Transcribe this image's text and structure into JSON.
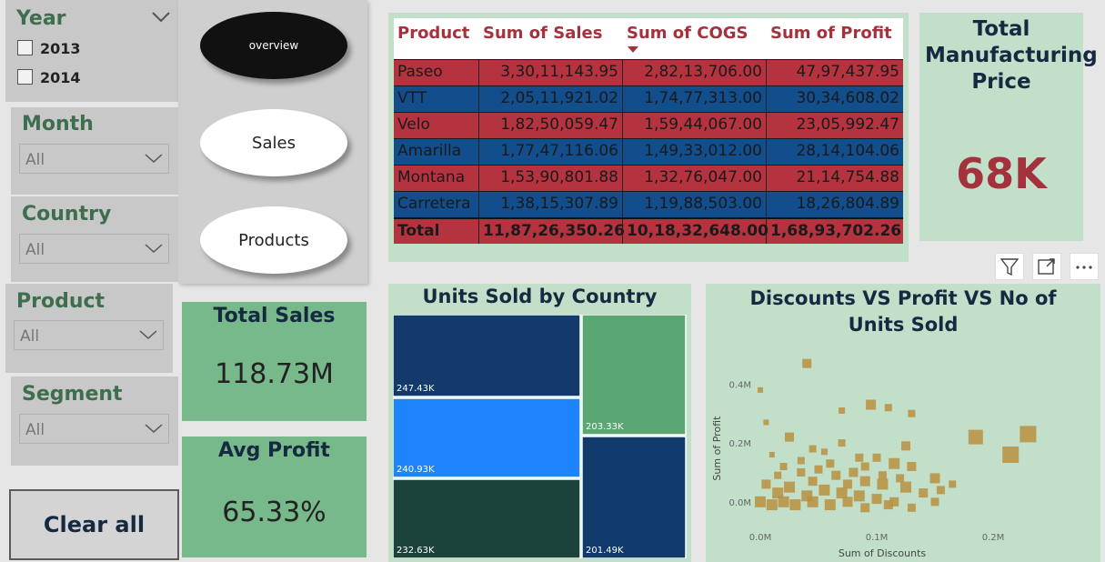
{
  "slicers": {
    "year": {
      "title": "Year",
      "options": [
        "2013",
        "2014"
      ]
    },
    "month": {
      "title": "Month",
      "value": "All"
    },
    "country": {
      "title": "Country",
      "value": "All"
    },
    "product": {
      "title": "Product",
      "value": "All"
    },
    "segment": {
      "title": "Segment",
      "value": "All"
    }
  },
  "nav": {
    "overview": "overview",
    "sales": "Sales",
    "products": "Products"
  },
  "clear_all": "Clear all",
  "cards": {
    "total_sales": {
      "title": "Total Sales",
      "value": "118.73M"
    },
    "avg_profit": {
      "title": "Avg Profit",
      "value": "65.33%"
    },
    "mfg_price": {
      "title": "Total Manufacturing Price",
      "value": "68K"
    }
  },
  "table": {
    "headers": [
      "Product",
      "Sum of Sales",
      "Sum of COGS",
      "Sum of Profit"
    ],
    "rows": [
      [
        "Paseo",
        "3,30,11,143.95",
        "2,82,13,706.00",
        "47,97,437.95"
      ],
      [
        "VTT",
        "2,05,11,921.02",
        "1,74,77,313.00",
        "30,34,608.02"
      ],
      [
        "Velo",
        "1,82,50,059.47",
        "1,59,44,067.00",
        "23,05,992.47"
      ],
      [
        "Amarilla",
        "1,77,47,116.06",
        "1,49,33,012.00",
        "28,14,104.06"
      ],
      [
        "Montana",
        "1,53,90,801.88",
        "1,32,76,047.00",
        "21,14,754.88"
      ],
      [
        "Carretera",
        "1,38,15,307.89",
        "1,19,88,503.00",
        "18,26,804.89"
      ]
    ],
    "total": [
      "Total",
      "11,87,26,350.26",
      "10,18,32,648.00",
      "1,68,93,702.26"
    ]
  },
  "treemap": {
    "title": "Units Sold by Country",
    "values": [
      "247.43K",
      "240.93K",
      "232.63K",
      "203.33K",
      "201.49K"
    ],
    "colors": [
      "#123b6b",
      "#1e84fb",
      "#1b433b",
      "#5aa774",
      "#0f3a6b"
    ]
  },
  "chart_data": {
    "type": "scatter",
    "title": "Discounts VS Profit VS No of Units Sold",
    "xlabel": "Sum of Discounts",
    "ylabel": "Sum of Profit",
    "x_ticks": [
      "0.0M",
      "0.1M",
      "0.2M"
    ],
    "y_ticks": [
      "0.0M",
      "0.2M",
      "0.4M"
    ],
    "xlim": [
      0,
      0.25
    ],
    "ylim": [
      -0.05,
      0.5
    ],
    "color": "#b8913f",
    "points": [
      {
        "x": 0.04,
        "y": 0.47,
        "s": 10
      },
      {
        "x": 0.0,
        "y": 0.38,
        "s": 6
      },
      {
        "x": 0.095,
        "y": 0.33,
        "s": 11
      },
      {
        "x": 0.11,
        "y": 0.32,
        "s": 8
      },
      {
        "x": 0.07,
        "y": 0.31,
        "s": 7
      },
      {
        "x": 0.13,
        "y": 0.3,
        "s": 8
      },
      {
        "x": 0.005,
        "y": 0.27,
        "s": 6
      },
      {
        "x": 0.025,
        "y": 0.22,
        "s": 10
      },
      {
        "x": 0.185,
        "y": 0.22,
        "s": 16
      },
      {
        "x": 0.23,
        "y": 0.23,
        "s": 18
      },
      {
        "x": 0.215,
        "y": 0.16,
        "s": 18
      },
      {
        "x": 0.125,
        "y": 0.19,
        "s": 10
      },
      {
        "x": 0.07,
        "y": 0.2,
        "s": 8
      },
      {
        "x": 0.045,
        "y": 0.18,
        "s": 8
      },
      {
        "x": 0.01,
        "y": 0.16,
        "s": 6
      },
      {
        "x": 0.085,
        "y": 0.15,
        "s": 9
      },
      {
        "x": 0.1,
        "y": 0.15,
        "s": 9
      },
      {
        "x": 0.115,
        "y": 0.13,
        "s": 12
      },
      {
        "x": 0.13,
        "y": 0.12,
        "s": 10
      },
      {
        "x": 0.15,
        "y": 0.08,
        "s": 11
      },
      {
        "x": 0.02,
        "y": 0.12,
        "s": 8
      },
      {
        "x": 0.035,
        "y": 0.1,
        "s": 9
      },
      {
        "x": 0.05,
        "y": 0.11,
        "s": 9
      },
      {
        "x": 0.065,
        "y": 0.09,
        "s": 10
      },
      {
        "x": 0.08,
        "y": 0.1,
        "s": 10
      },
      {
        "x": 0.09,
        "y": 0.07,
        "s": 11
      },
      {
        "x": 0.105,
        "y": 0.06,
        "s": 12
      },
      {
        "x": 0.125,
        "y": 0.05,
        "s": 12
      },
      {
        "x": 0.14,
        "y": 0.03,
        "s": 10
      },
      {
        "x": 0.155,
        "y": 0.04,
        "s": 9
      },
      {
        "x": 0.005,
        "y": 0.06,
        "s": 10
      },
      {
        "x": 0.015,
        "y": 0.03,
        "s": 12
      },
      {
        "x": 0.025,
        "y": 0.05,
        "s": 12
      },
      {
        "x": 0.04,
        "y": 0.02,
        "s": 12
      },
      {
        "x": 0.055,
        "y": 0.04,
        "s": 12
      },
      {
        "x": 0.07,
        "y": 0.03,
        "s": 12
      },
      {
        "x": 0.085,
        "y": 0.02,
        "s": 12
      },
      {
        "x": 0.1,
        "y": 0.01,
        "s": 11
      },
      {
        "x": 0.115,
        "y": 0.0,
        "s": 10
      },
      {
        "x": 0.0,
        "y": 0.0,
        "s": 12
      },
      {
        "x": 0.01,
        "y": -0.01,
        "s": 12
      },
      {
        "x": 0.02,
        "y": 0.0,
        "s": 12
      },
      {
        "x": 0.03,
        "y": -0.01,
        "s": 12
      },
      {
        "x": 0.045,
        "y": 0.0,
        "s": 12
      },
      {
        "x": 0.06,
        "y": -0.01,
        "s": 12
      },
      {
        "x": 0.075,
        "y": 0.0,
        "s": 11
      },
      {
        "x": 0.09,
        "y": -0.02,
        "s": 10
      },
      {
        "x": 0.11,
        "y": -0.01,
        "s": 10
      },
      {
        "x": 0.13,
        "y": -0.02,
        "s": 9
      },
      {
        "x": 0.15,
        "y": 0.0,
        "s": 9
      },
      {
        "x": 0.045,
        "y": 0.07,
        "s": 10
      },
      {
        "x": 0.06,
        "y": 0.13,
        "s": 9
      },
      {
        "x": 0.075,
        "y": 0.06,
        "s": 10
      },
      {
        "x": 0.09,
        "y": 0.12,
        "s": 9
      },
      {
        "x": 0.165,
        "y": 0.06,
        "s": 8
      },
      {
        "x": 0.035,
        "y": 0.14,
        "s": 8
      },
      {
        "x": 0.015,
        "y": 0.09,
        "s": 8
      },
      {
        "x": 0.055,
        "y": 0.17,
        "s": 7
      },
      {
        "x": 0.105,
        "y": 0.09,
        "s": 9
      },
      {
        "x": 0.12,
        "y": 0.08,
        "s": 9
      }
    ]
  }
}
